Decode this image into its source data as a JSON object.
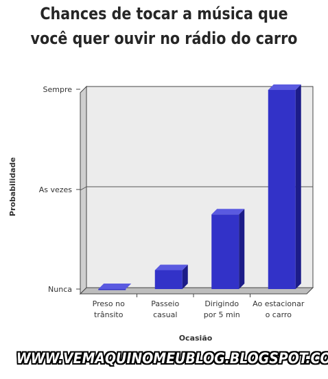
{
  "chart_data": {
    "type": "bar",
    "title_lines": [
      "Chances de tocar a música que",
      "você quer ouvir no rádio do carro"
    ],
    "xlabel": "Ocasião",
    "ylabel": "Probabilidade",
    "y_levels": [
      "Nunca",
      "As vezes",
      "Sempre"
    ],
    "ylim": [
      0,
      2
    ],
    "categories": [
      [
        "Preso no",
        "trânsito"
      ],
      [
        "Passeio",
        "casual"
      ],
      [
        "Dirigindo",
        "por 5 min"
      ],
      [
        "Ao estacionar",
        "o carro"
      ]
    ],
    "values": [
      0.0,
      0.19,
      0.75,
      2.0
    ],
    "grid": true,
    "bar_color": "#3232c8",
    "bar_side_color": "#1c1c88",
    "bar_top_color": "#5a5ae0",
    "plot_bg": "#ececec"
  },
  "watermark": "WWW.VEMAQUINOMEUBLOG.BLOGSPOT.COM"
}
